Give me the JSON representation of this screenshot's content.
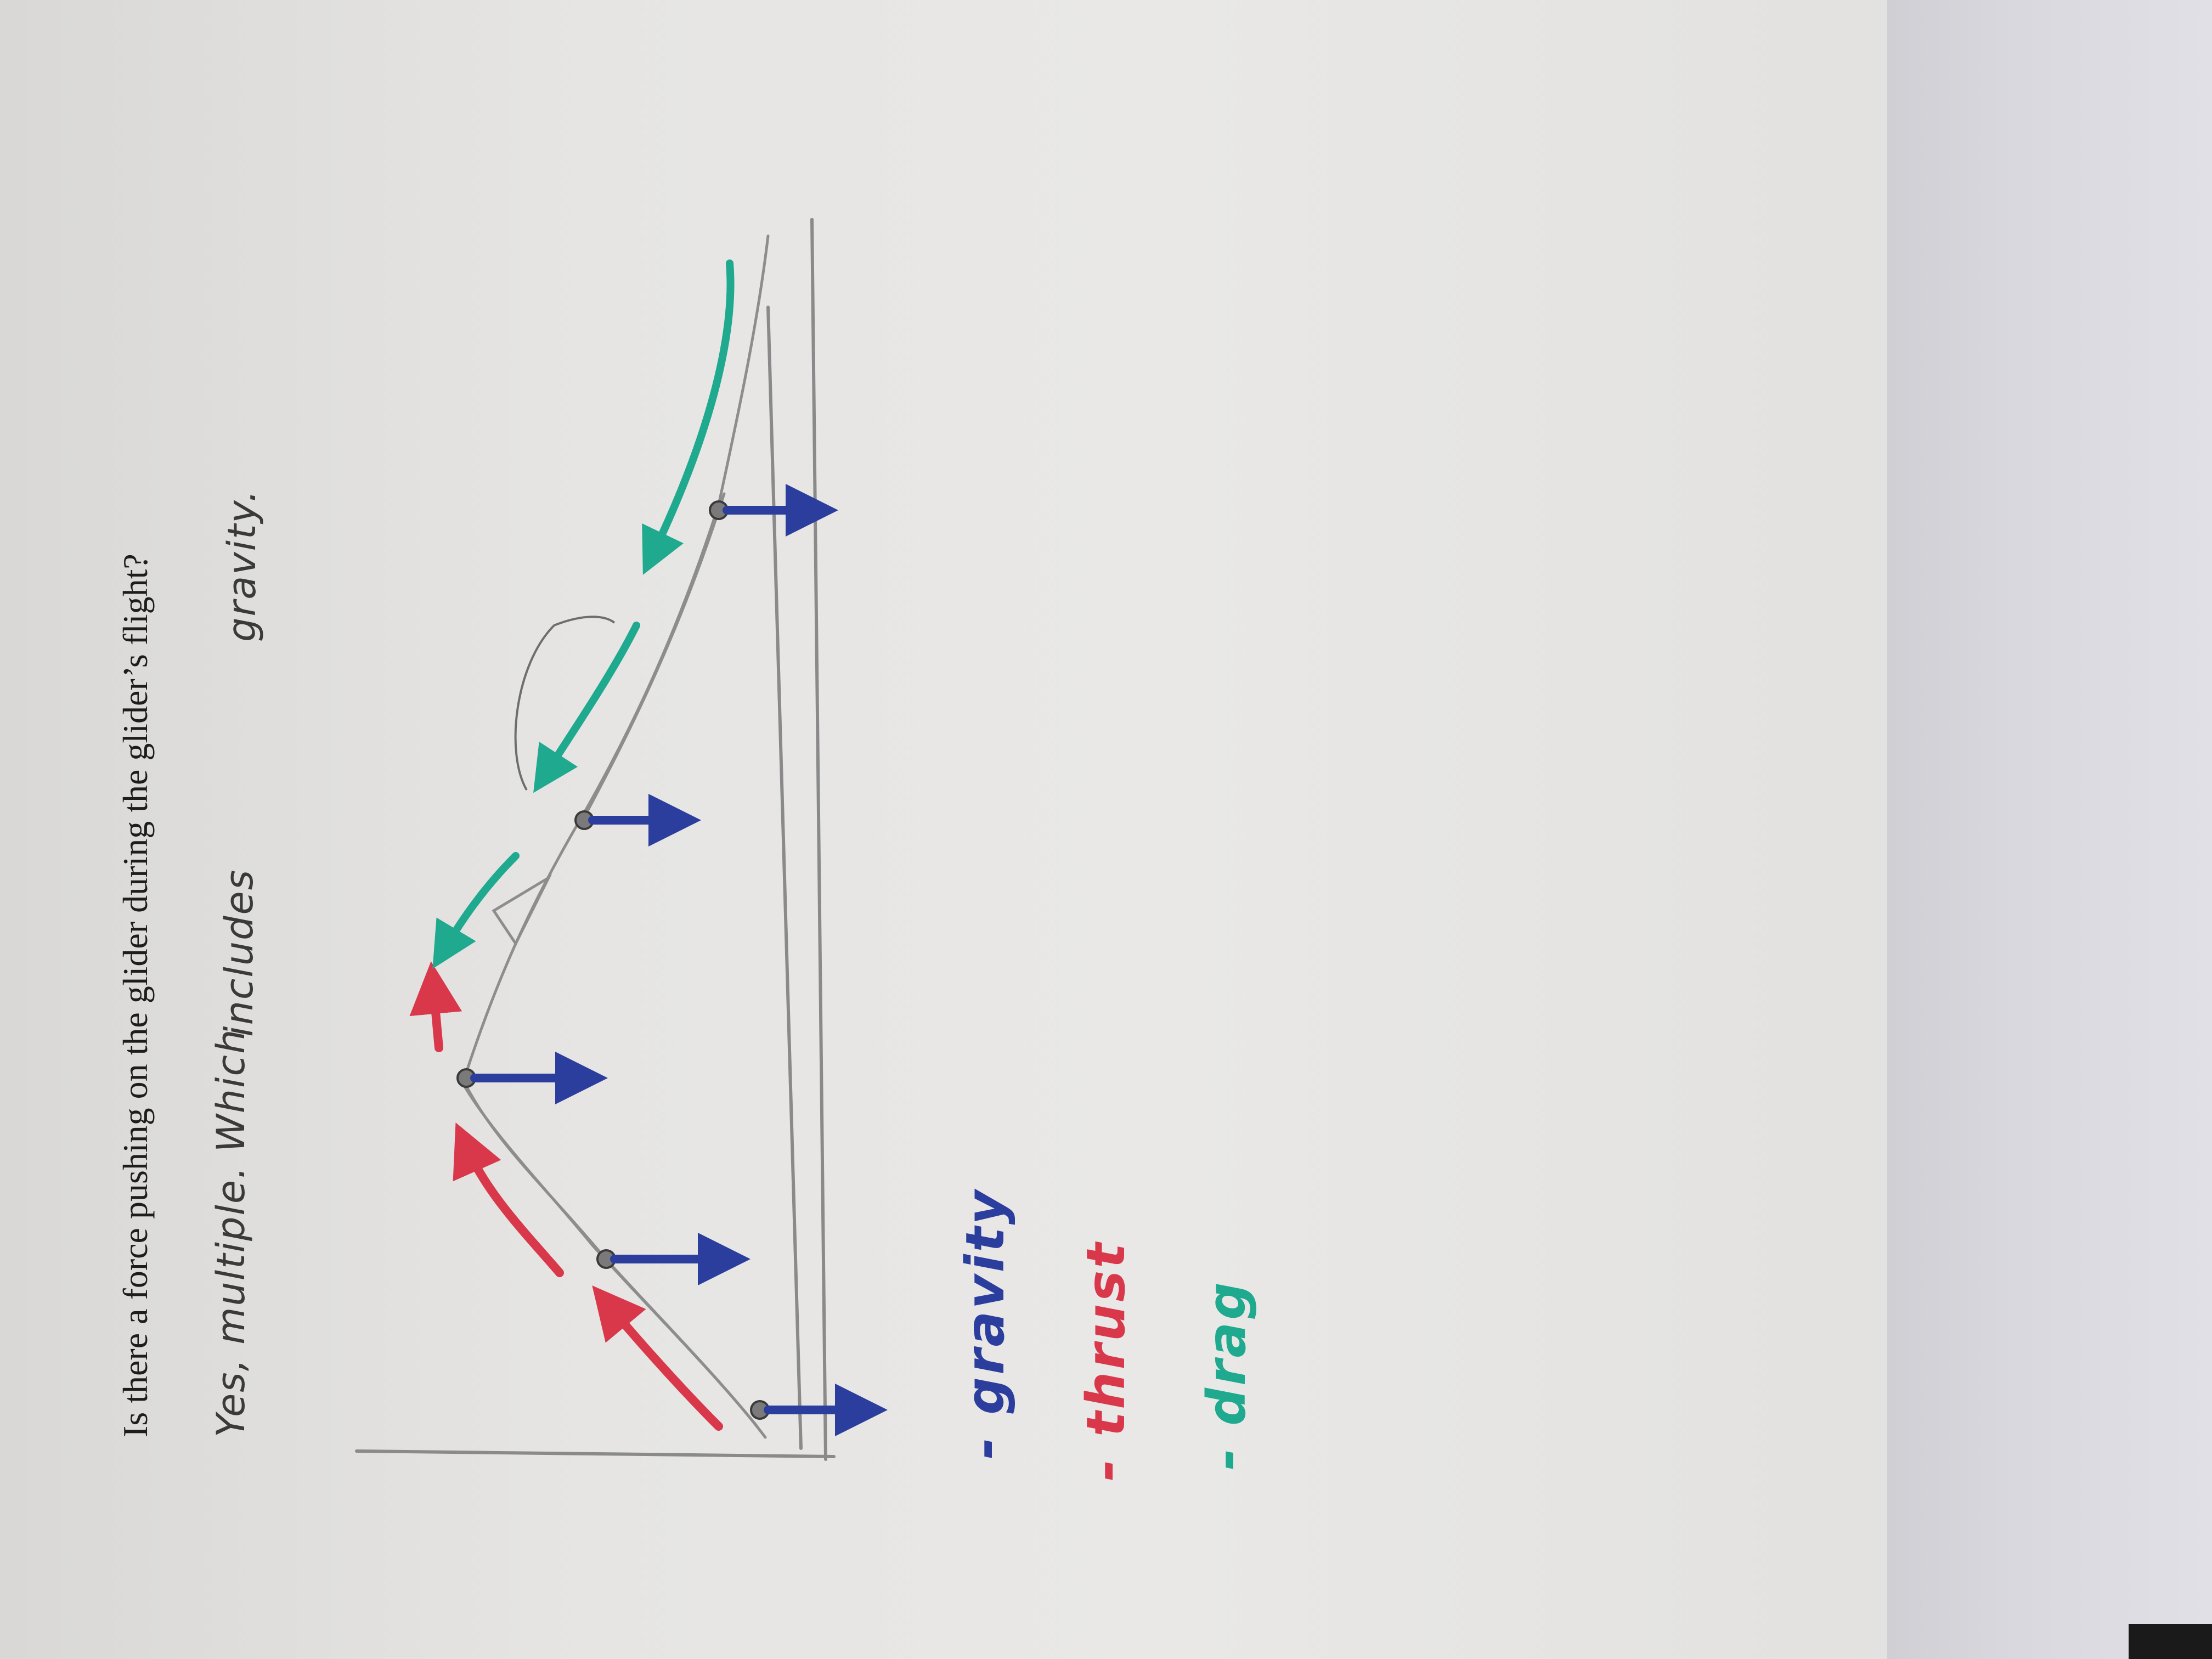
{
  "worksheet": {
    "question": "Is there a force pushing on the glider during the glider’s flight?"
  },
  "answer": {
    "line1": "Yes, multiple. Which",
    "line2": "includes",
    "line3": "gravity."
  },
  "legend": {
    "gravity": "- gravity",
    "thrust": "- thrust",
    "drag": "- drag"
  },
  "colors": {
    "gravity": "#2b3e9e",
    "thrust": "#d9384b",
    "drag": "#1fa98e",
    "pencil": "#8a8a8a"
  }
}
